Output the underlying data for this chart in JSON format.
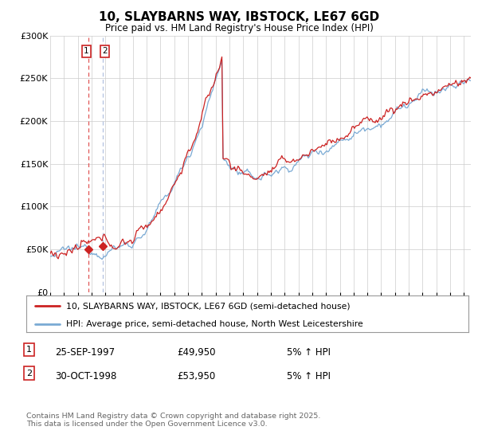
{
  "title": "10, SLAYBARNS WAY, IBSTOCK, LE67 6GD",
  "subtitle": "Price paid vs. HM Land Registry's House Price Index (HPI)",
  "ylim": [
    0,
    300000
  ],
  "xlim_start": 1995.0,
  "xlim_end": 2025.5,
  "hpi_color": "#7aaad4",
  "price_color": "#cc2222",
  "vline1_color": "#dd4444",
  "vline2_color": "#aabbdd",
  "marker_color": "#cc2222",
  "legend1": "10, SLAYBARNS WAY, IBSTOCK, LE67 6GD (semi-detached house)",
  "legend2": "HPI: Average price, semi-detached house, North West Leicestershire",
  "transaction1_date": "25-SEP-1997",
  "transaction1_price": "£49,950",
  "transaction1_hpi": "5% ↑ HPI",
  "transaction2_date": "30-OCT-1998",
  "transaction2_price": "£53,950",
  "transaction2_hpi": "5% ↑ HPI",
  "footer": "Contains HM Land Registry data © Crown copyright and database right 2025.\nThis data is licensed under the Open Government Licence v3.0.",
  "background_color": "#ffffff",
  "grid_color": "#cccccc",
  "t1_x": 1997.75,
  "t2_x": 1998.833,
  "t1_y": 49950,
  "t2_y": 53950
}
